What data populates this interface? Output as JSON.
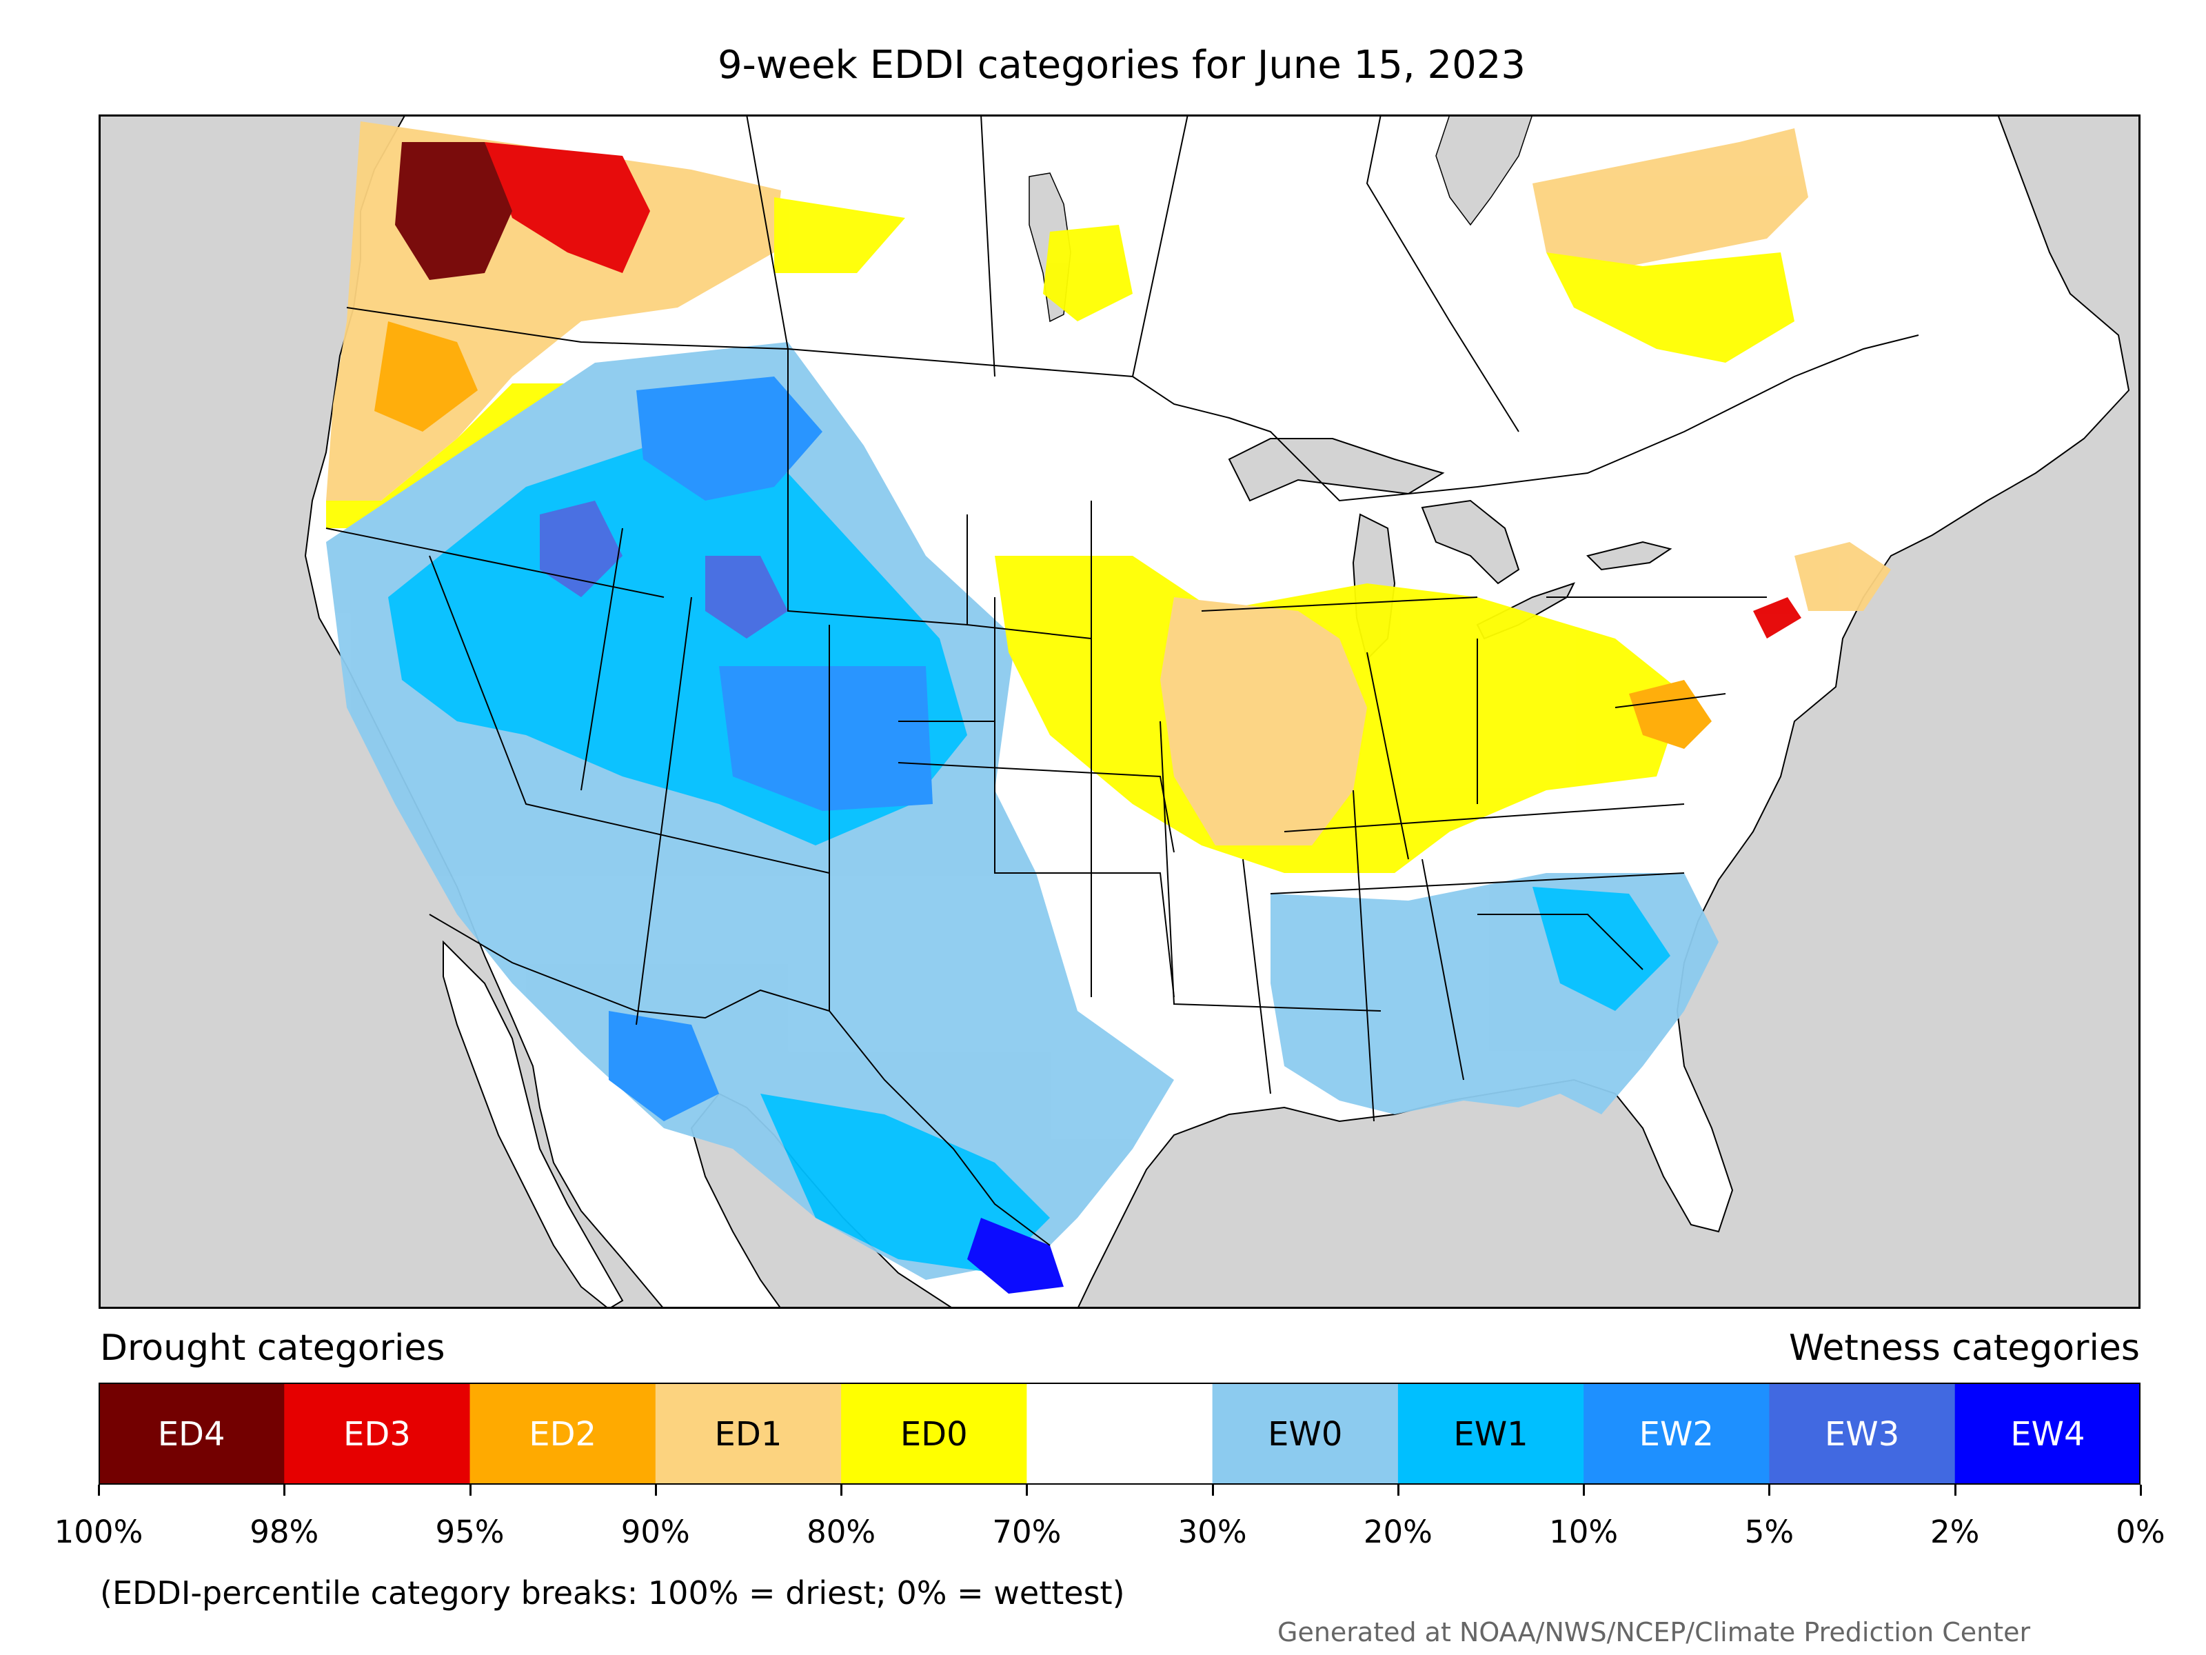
{
  "title": "9-week EDDI categories for June 15, 2023",
  "legend": {
    "drought_title": "Drought categories",
    "wetness_title": "Wetness categories",
    "categories": [
      {
        "label": "ED4",
        "color": "#730000",
        "text_color": "#ffffff"
      },
      {
        "label": "ED3",
        "color": "#e60000",
        "text_color": "#ffffff"
      },
      {
        "label": "ED2",
        "color": "#ffaa00",
        "text_color": "#ffffff"
      },
      {
        "label": "ED1",
        "color": "#fcd37f",
        "text_color": "#000000"
      },
      {
        "label": "ED0",
        "color": "#ffff00",
        "text_color": "#000000"
      },
      {
        "label": "",
        "color": "#ffffff",
        "text_color": "#000000"
      },
      {
        "label": "EW0",
        "color": "#8ccbef",
        "text_color": "#000000"
      },
      {
        "label": "EW1",
        "color": "#00bfff",
        "text_color": "#000000"
      },
      {
        "label": "EW2",
        "color": "#1e90ff",
        "text_color": "#ffffff"
      },
      {
        "label": "EW3",
        "color": "#4169e1",
        "text_color": "#ffffff"
      },
      {
        "label": "EW4",
        "color": "#0000ff",
        "text_color": "#ffffff"
      }
    ],
    "ticks": [
      "100%",
      "98%",
      "95%",
      "90%",
      "80%",
      "70%",
      "30%",
      "20%",
      "10%",
      "5%",
      "2%",
      "0%"
    ]
  },
  "note": "(EDDI-percentile category breaks: 100% = driest; 0% = wettest)",
  "credit": "Generated at NOAA/NWS/NCEP/Climate Prediction Center",
  "map": {
    "ocean_color": "#d3d3d3",
    "land_color": "#ffffff"
  }
}
